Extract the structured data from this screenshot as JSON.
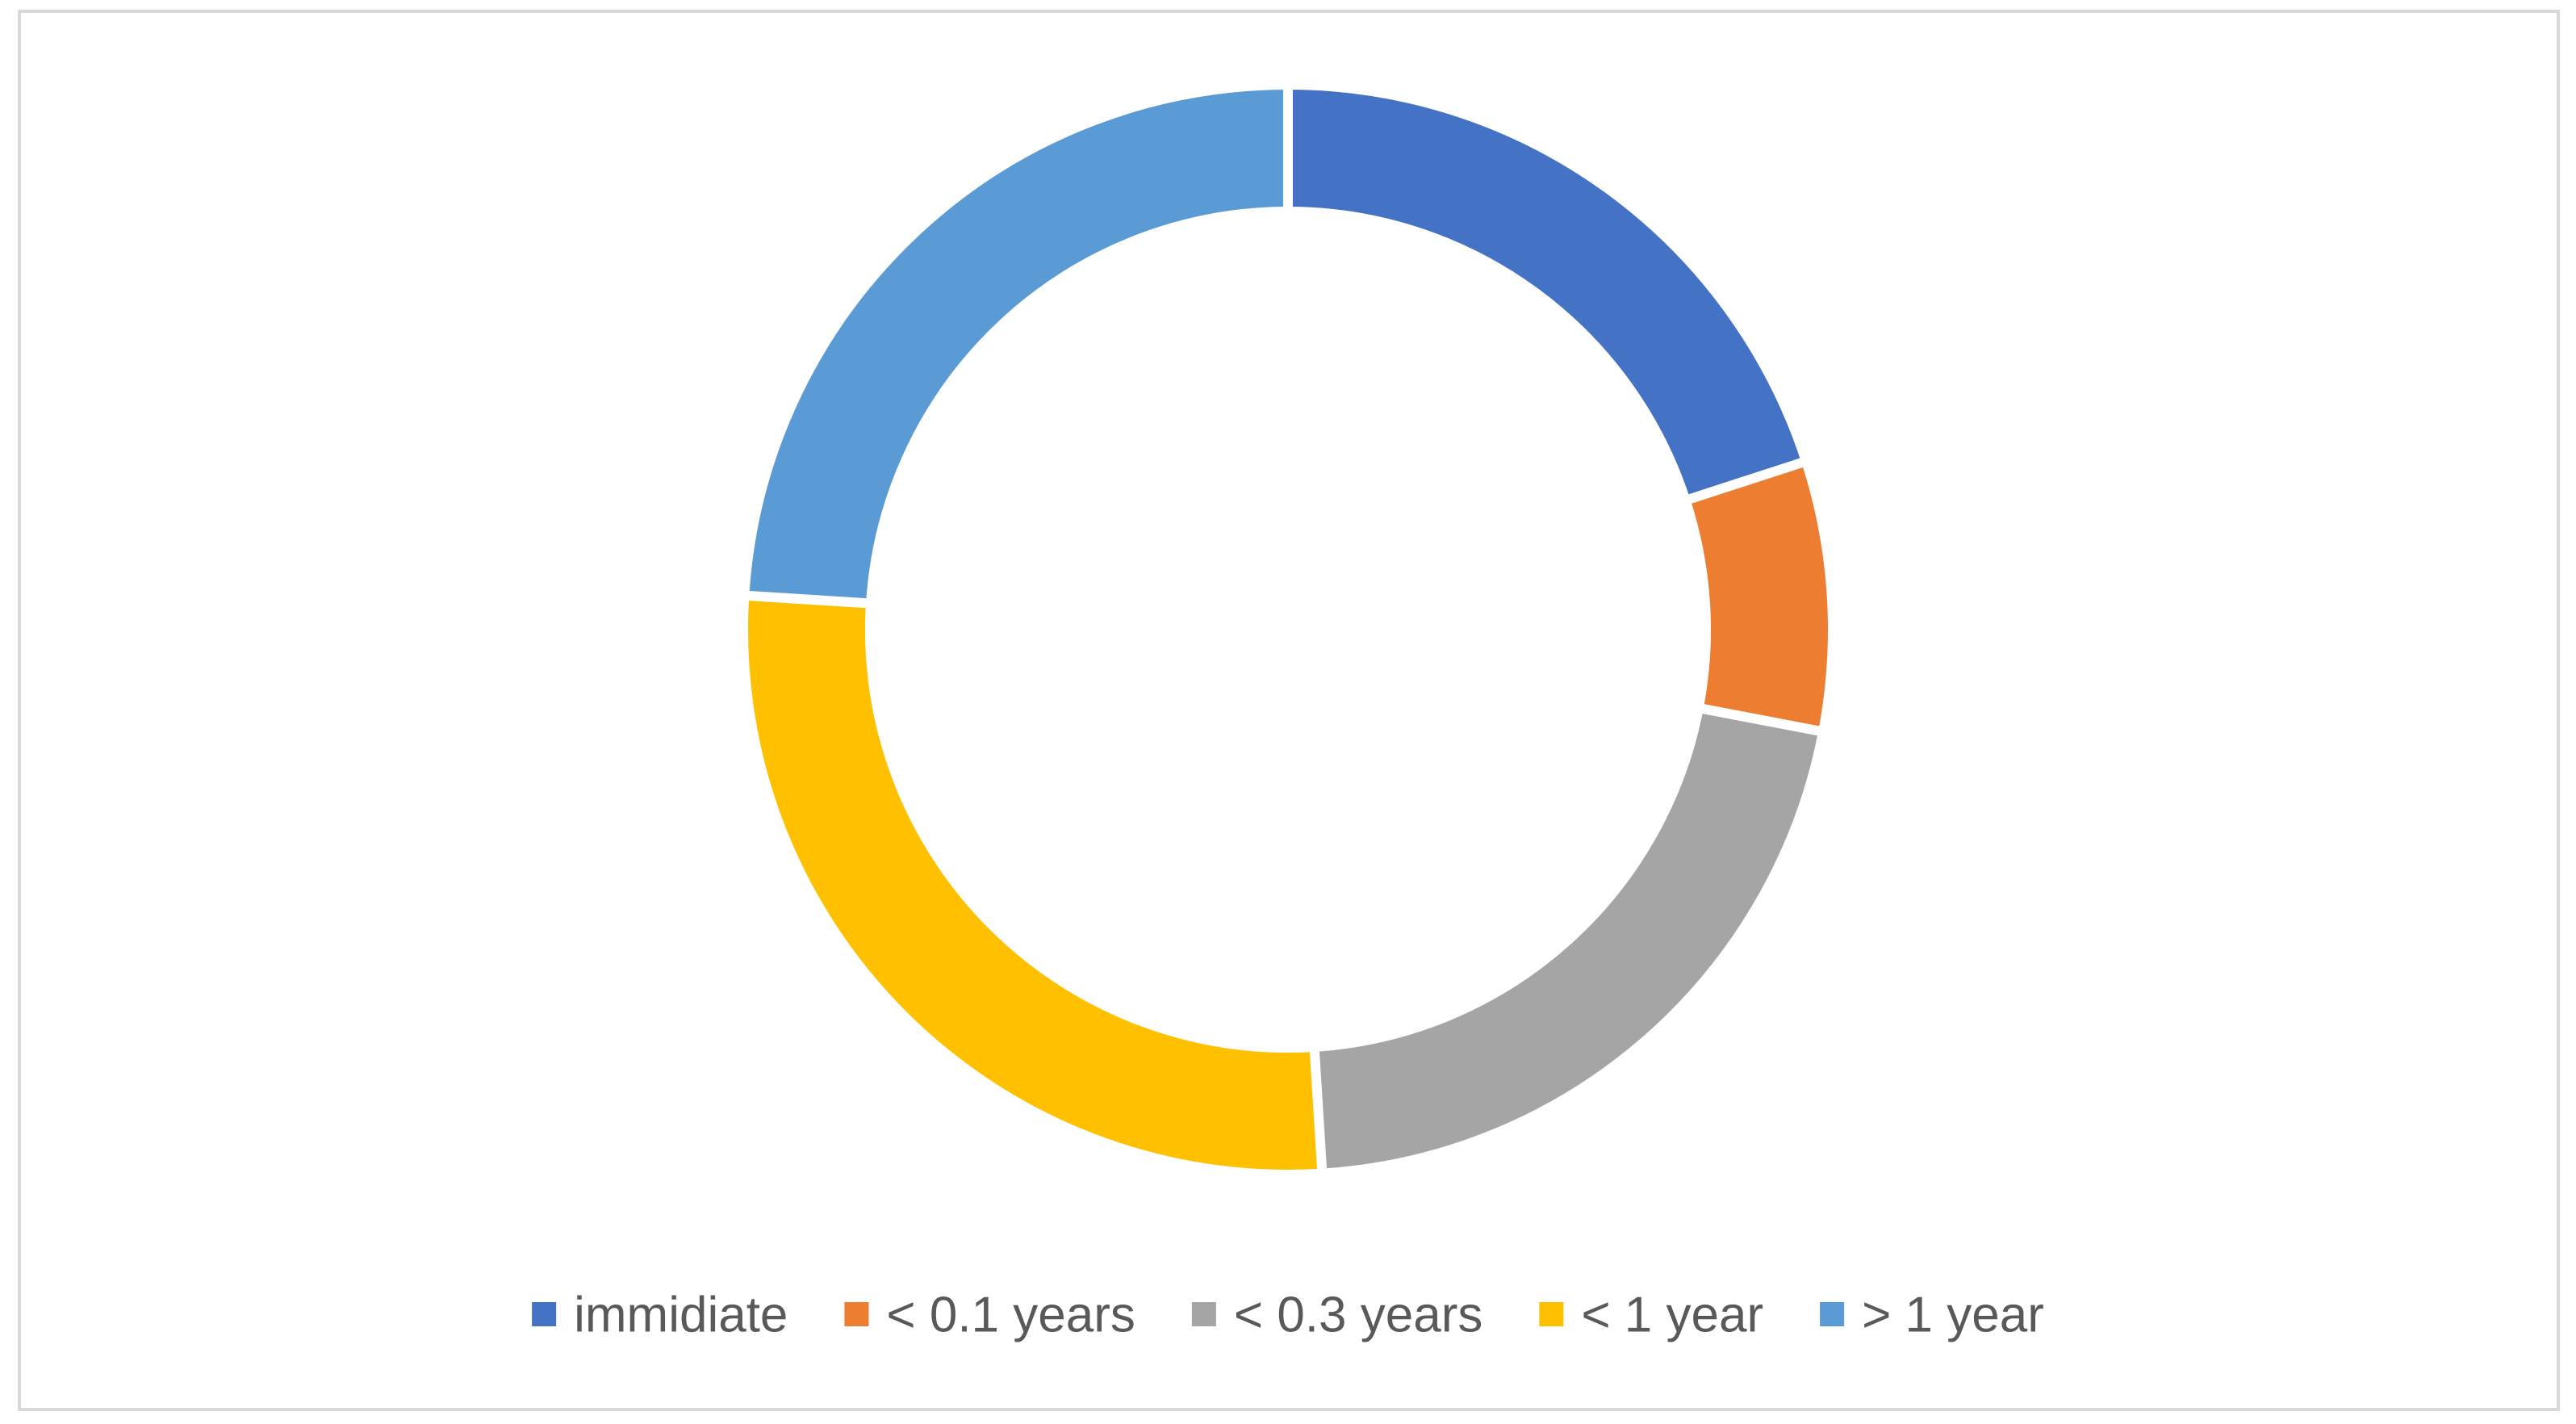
{
  "chart_data": {
    "type": "pie",
    "variant": "doughnut",
    "categories": [
      "immidiate",
      "< 0.1 years",
      "< 0.3 years",
      "< 1 year",
      "> 1 year"
    ],
    "values": [
      20,
      8,
      21,
      27,
      24
    ],
    "colors": [
      "#4472c4",
      "#ed7d31",
      "#a5a5a5",
      "#ffc000",
      "#5b9bd5"
    ],
    "legend_position": "bottom",
    "title": ""
  }
}
